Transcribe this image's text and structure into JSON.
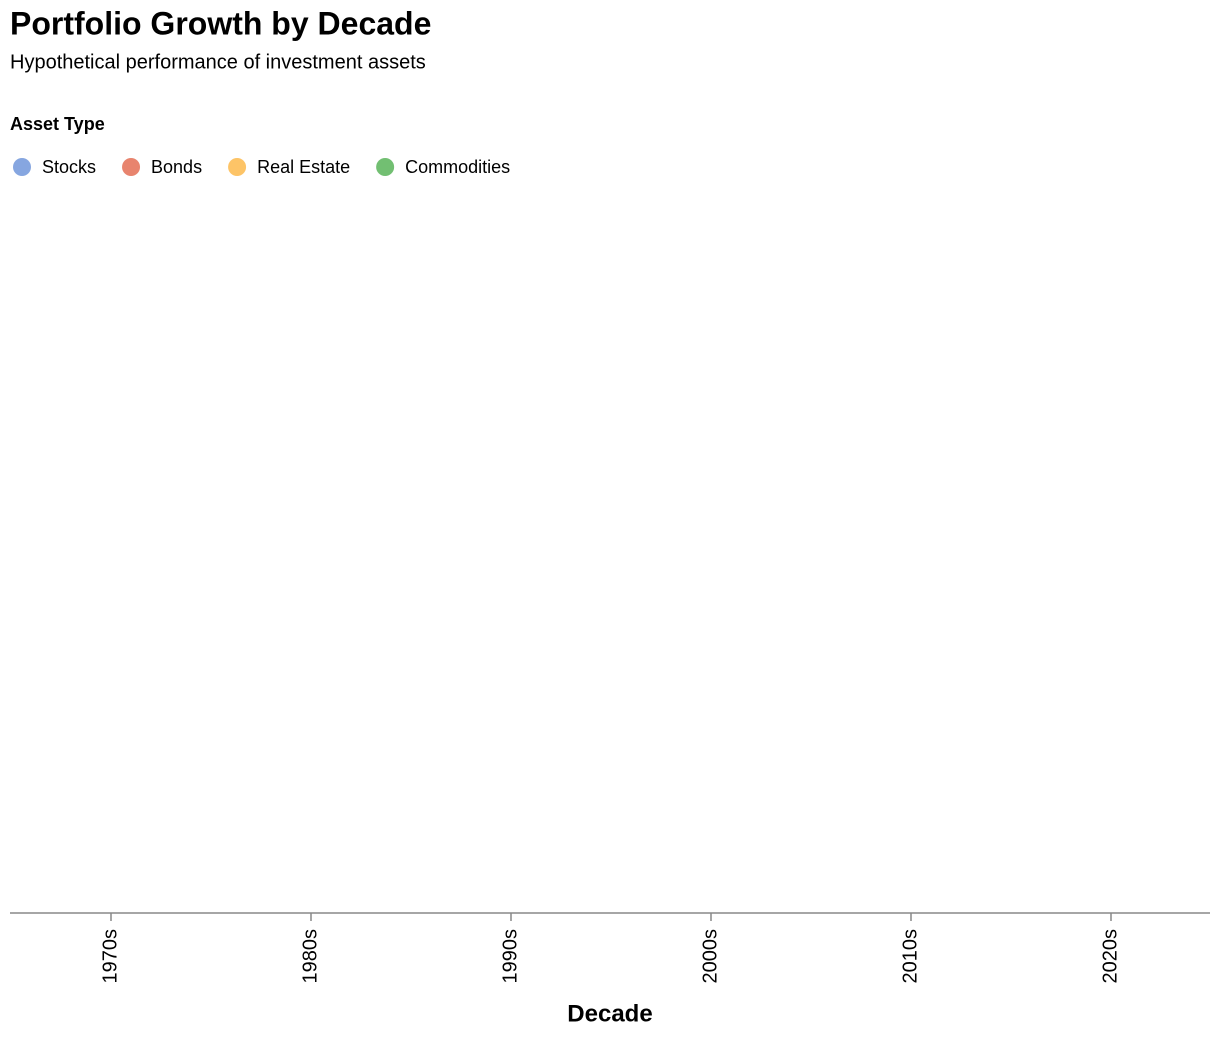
{
  "chart_data": {
    "type": "scatter",
    "title": "Portfolio Growth by Decade",
    "subtitle": "Hypothetical performance of investment assets",
    "legend_title": "Asset Type",
    "x_label": "Decade",
    "categories": [
      "1970s",
      "1980s",
      "1990s",
      "2000s",
      "2010s",
      "2020s"
    ],
    "series": [
      {
        "name": "Stocks",
        "color": "#86a6e0",
        "values": [
          null,
          null,
          null,
          null,
          null,
          null
        ]
      },
      {
        "name": "Bonds",
        "color": "#e8846e",
        "values": [
          null,
          null,
          null,
          null,
          null,
          null
        ]
      },
      {
        "name": "Real Estate",
        "color": "#fdc467",
        "values": [
          null,
          null,
          null,
          null,
          null,
          null
        ]
      },
      {
        "name": "Commodities",
        "color": "#72bf72",
        "values": [
          null,
          null,
          null,
          null,
          null,
          null
        ]
      }
    ],
    "legend": "top-left"
  }
}
